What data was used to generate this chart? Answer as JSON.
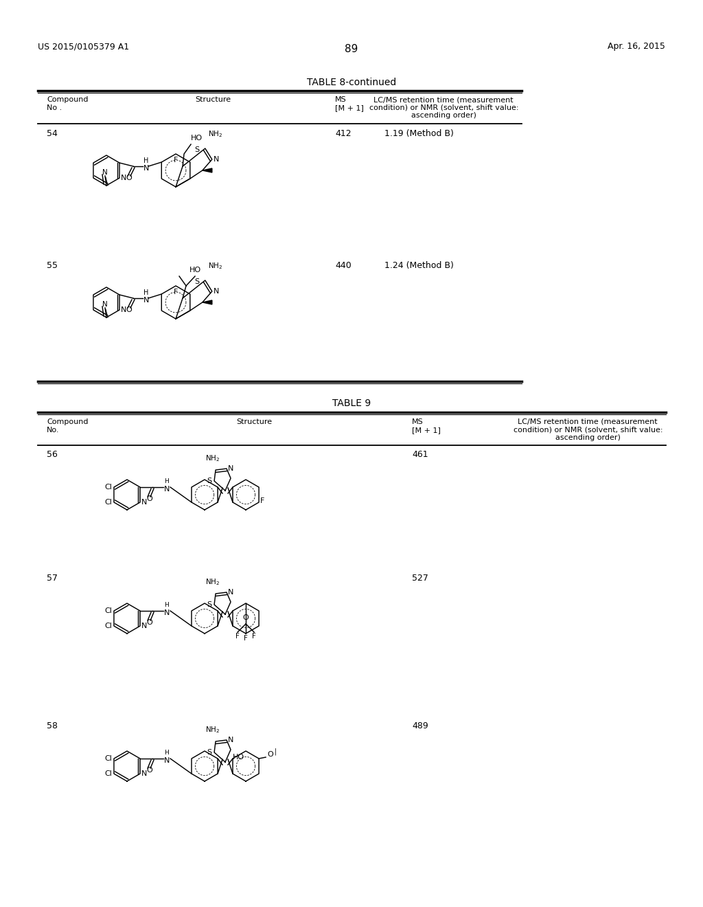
{
  "page_num": "89",
  "patent_left": "US 2015/0105379 A1",
  "patent_right": "Apr. 16, 2015",
  "table8_title": "TABLE 8-continued",
  "table9_title": "TABLE 9",
  "t8_col1": "Compound\nNo .",
  "t8_col2": "Structure",
  "t8_col3": "MS\n[M + 1]",
  "t8_col4": "LC/MS retention time (measurement\ncondition) or NMR (solvent, shift value:\nascending order)",
  "t9_col1": "Compound\nNo.",
  "t9_col2": "Structure",
  "t9_col3": "MS\n[M + 1]",
  "t9_col4": "LC/MS retention time (measurement\ncondition) or NMR (solvent, shift value:\nascending order)",
  "cpd54_no": "54",
  "cpd54_ms": "412",
  "cpd54_lcms": "1.19 (Method B)",
  "cpd55_no": "55",
  "cpd55_ms": "440",
  "cpd55_lcms": "1.24 (Method B)",
  "cpd56_no": "56",
  "cpd56_ms": "461",
  "cpd56_lcms": "",
  "cpd57_no": "57",
  "cpd57_ms": "527",
  "cpd57_lcms": "",
  "cpd58_no": "58",
  "cpd58_ms": "489",
  "cpd58_lcms": "",
  "bg_color": "#ffffff",
  "text_color": "#000000",
  "line_color": "#000000"
}
